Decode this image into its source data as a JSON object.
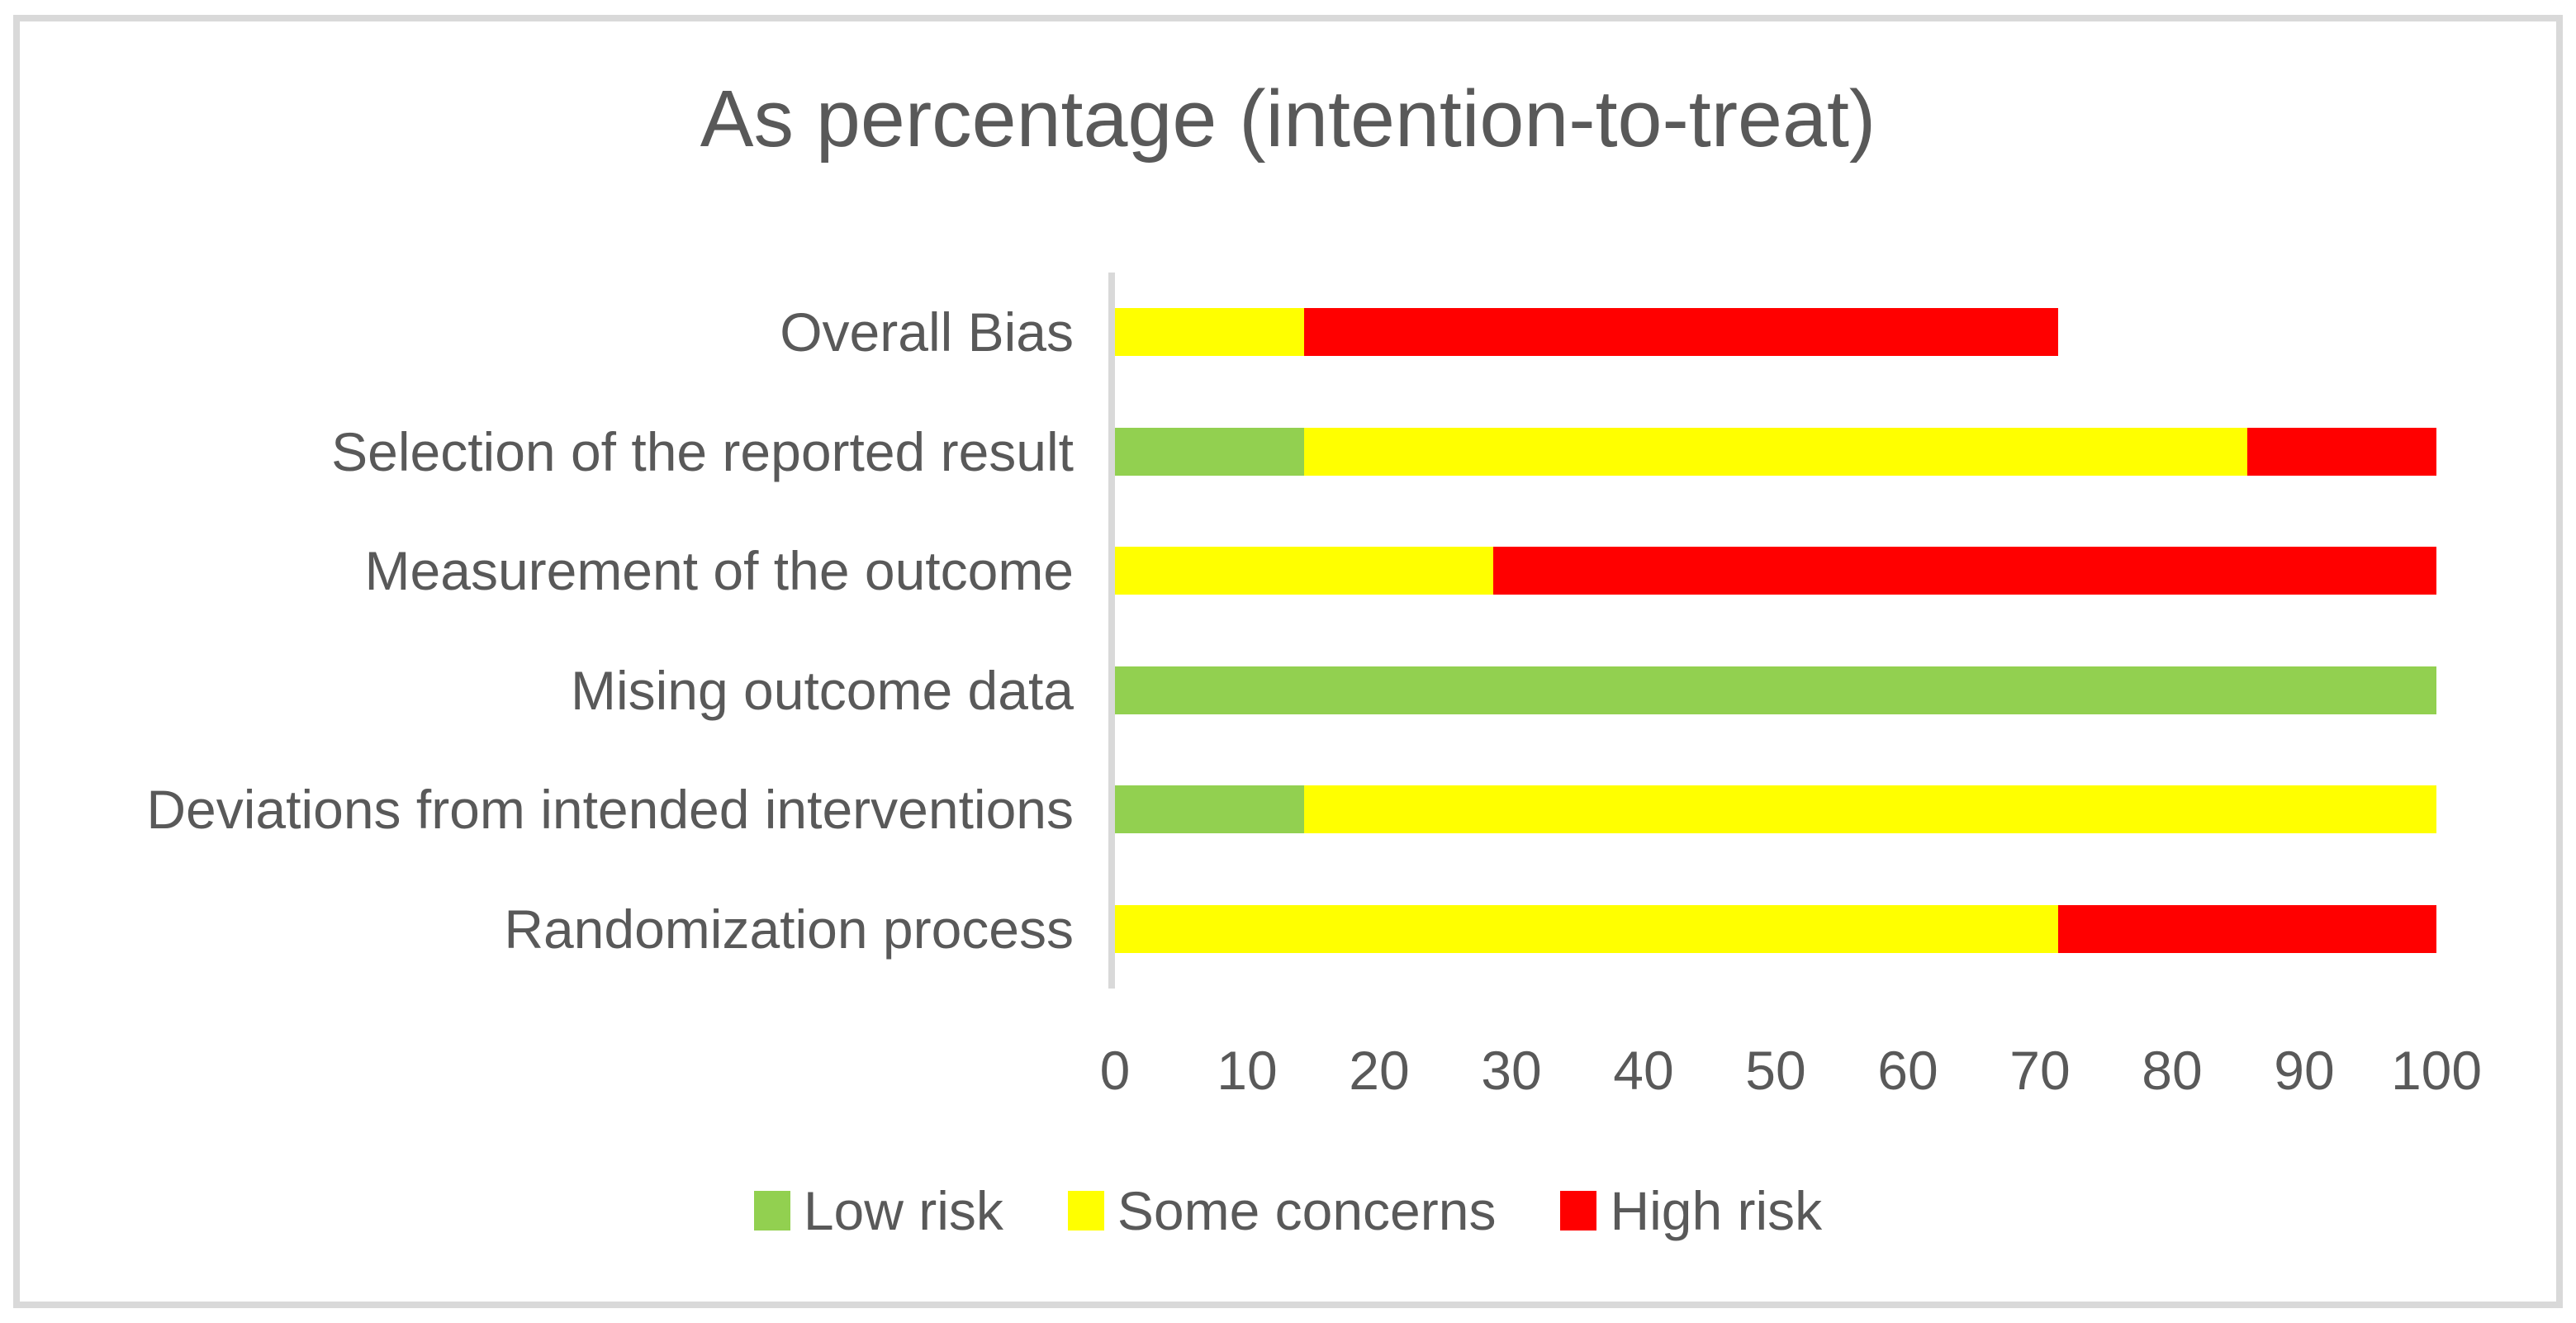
{
  "title": "As percentage (intention-to-treat)",
  "text_color": "#595959",
  "frame_color": "#D9D9D9",
  "chart_data": {
    "type": "bar",
    "orientation": "horizontal",
    "stacked": true,
    "grid": false,
    "title": "As percentage (intention-to-treat)",
    "xlabel": "",
    "ylabel": "",
    "xlim": [
      0,
      100
    ],
    "x_ticks": [
      0,
      10,
      20,
      30,
      40,
      50,
      60,
      70,
      80,
      90,
      100
    ],
    "legend_position": "bottom",
    "categories": [
      "Overall Bias",
      "Selection of the reported result",
      "Measurement of the outcome",
      "Mising outcome data",
      "Deviations from intended interventions",
      "Randomization process"
    ],
    "series": [
      {
        "name": "Low risk",
        "color": "#92D050",
        "values": [
          0,
          14.3,
          0,
          100,
          14.3,
          0
        ]
      },
      {
        "name": "Some concerns",
        "color": "#FFFF00",
        "values": [
          14.3,
          71.4,
          28.6,
          0,
          85.7,
          71.4
        ]
      },
      {
        "name": "High risk",
        "color": "#FF0000",
        "values": [
          57.1,
          14.3,
          71.4,
          0,
          0,
          28.6
        ]
      }
    ]
  }
}
